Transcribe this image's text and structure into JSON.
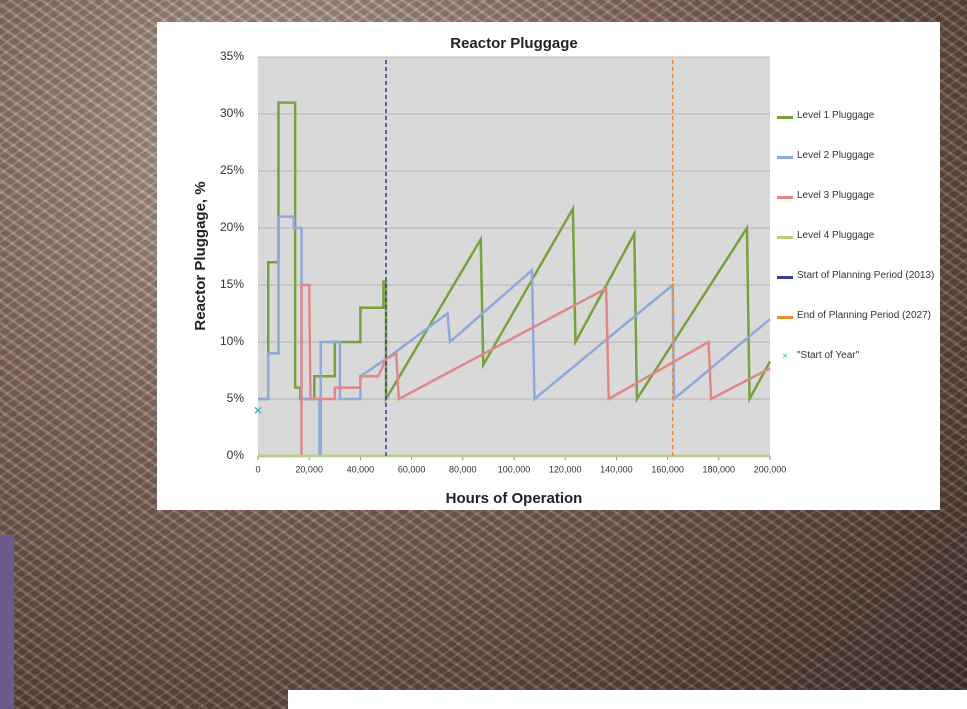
{
  "chart_data": {
    "type": "line",
    "title": "Reactor Pluggage",
    "x_label": "Hours of Operation",
    "y_label": "Reactor Pluggage, %",
    "xlim": [
      0,
      200000
    ],
    "ylim": [
      0,
      35
    ],
    "grid": true,
    "xticks": [
      0,
      {
        "value": 20000,
        "label": "20,000"
      },
      {
        "value": 40000,
        "label": "40,000"
      },
      {
        "value": 60000,
        "label": "60,000"
      },
      {
        "value": 80000,
        "label": "80,000"
      },
      {
        "value": 100000,
        "label": "100,000"
      },
      {
        "value": 120000,
        "label": "120,000"
      },
      {
        "value": 140000,
        "label": "140,000"
      },
      {
        "value": 160000,
        "label": "160,000"
      },
      {
        "value": 180000,
        "label": "180,000"
      },
      {
        "value": 200000,
        "label": "200,000"
      }
    ],
    "yticks": [
      {
        "value": 0,
        "label": "0%"
      },
      {
        "value": 5,
        "label": "5%"
      },
      {
        "value": 10,
        "label": "10%"
      },
      {
        "value": 15,
        "label": "15%"
      },
      {
        "value": 20,
        "label": "20%"
      },
      {
        "value": 25,
        "label": "25%"
      },
      {
        "value": 30,
        "label": "30%"
      },
      {
        "value": 35,
        "label": "35%"
      }
    ],
    "series": [
      {
        "name": "Level 1 Pluggage",
        "color": "#77a33a",
        "x": [
          0,
          4000,
          4000,
          8000,
          8000,
          14500,
          14500,
          16500,
          16500,
          22000,
          22000,
          30000,
          30000,
          40000,
          40000,
          49000,
          49000,
          50000,
          50000,
          87000,
          88000,
          123000,
          124000,
          147000,
          148000,
          191000,
          192000,
          200000
        ],
        "values": [
          5,
          5,
          17,
          17,
          31,
          31,
          6,
          6,
          5,
          5,
          7,
          7,
          10,
          10,
          13,
          13,
          15.3,
          15.3,
          5,
          19,
          8,
          21.7,
          10,
          19.5,
          5,
          20,
          5,
          8.3
        ]
      },
      {
        "name": "Level 2 Pluggage",
        "color": "#8ea9db",
        "x": [
          0,
          4000,
          4000,
          8000,
          8000,
          14000,
          14000,
          17000,
          17000,
          24000,
          24000,
          24500,
          24500,
          32000,
          32000,
          40000,
          40000,
          50000,
          74000,
          75000,
          107000,
          108000,
          162000,
          162500,
          200000
        ],
        "values": [
          5,
          5,
          9,
          9,
          21,
          21,
          20,
          20,
          5,
          5,
          0,
          0,
          10,
          10,
          5,
          5,
          7,
          8.5,
          12.5,
          10,
          16.3,
          5,
          15,
          5,
          12
        ]
      },
      {
        "name": "Level 3 Pluggage",
        "color": "#e0878a",
        "x": [
          0,
          16000,
          16000,
          17000,
          17000,
          20000,
          20500,
          30000,
          30000,
          40000,
          40000,
          47000,
          50000,
          54000,
          55000,
          136000,
          137000,
          176000,
          177000,
          200000
        ],
        "values": [
          0,
          0,
          0,
          0,
          15,
          15,
          5,
          5,
          6,
          6,
          7,
          7,
          8.5,
          9,
          5,
          14.7,
          5,
          10,
          5,
          7.7
        ]
      },
      {
        "name": "Level 4 Pluggage",
        "color": "#b5d27a",
        "x": [
          0,
          200000
        ],
        "values": [
          0,
          0
        ]
      },
      {
        "name": "Start of Planning Period (2013)",
        "color": "#3b3f9a",
        "dashed": true,
        "x": [
          50000,
          50000
        ],
        "values": [
          0,
          35
        ]
      },
      {
        "name": "End of Planning Period (2027)",
        "color": "#f08a2c",
        "dashed": true,
        "x": [
          162000,
          162000
        ],
        "values": [
          0,
          35
        ]
      },
      {
        "name": "\"Start of Year\"",
        "color": "#3fb6c6",
        "marker": "x",
        "x": [
          0
        ],
        "values": [
          4
        ]
      }
    ]
  }
}
